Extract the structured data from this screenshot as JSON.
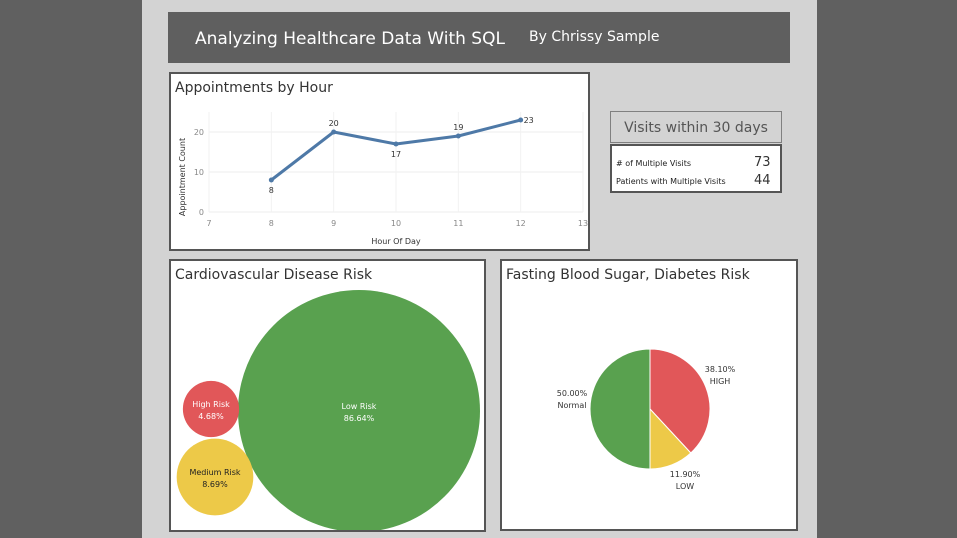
{
  "header": {
    "title": "Analyzing Healthcare Data With SQL",
    "byline": "By Chrissy Sample"
  },
  "kpi": {
    "title": "Visits within 30 days",
    "rows": [
      {
        "label": "# of Multiple Visits",
        "value": "73"
      },
      {
        "label": "Patients with Multiple Visits",
        "value": "44"
      }
    ]
  },
  "colors": {
    "line": "#4e79a7",
    "green": "#59a14f",
    "red": "#e15759",
    "yellow": "#edc948",
    "header_bg": "#5f5f5f",
    "page_bg": "#d3d3d3"
  },
  "chart_data": [
    {
      "id": "appointments",
      "type": "line",
      "title": "Appointments by Hour",
      "xlabel": "Hour Of Day",
      "ylabel": "Appointment Count",
      "x": [
        8,
        9,
        10,
        11,
        12
      ],
      "values": [
        8,
        20,
        17,
        19,
        23
      ],
      "x_ticks": [
        7,
        8,
        9,
        10,
        11,
        12,
        13
      ],
      "y_ticks": [
        0,
        10,
        20
      ],
      "xlim": [
        7,
        13
      ],
      "ylim": [
        0,
        25
      ],
      "grid": true
    },
    {
      "id": "cardio",
      "type": "bubble",
      "title": "Cardiovascular Disease Risk",
      "categories": [
        "Low Risk",
        "High Risk",
        "Medium Risk"
      ],
      "values": [
        86.64,
        4.68,
        8.69
      ],
      "labels": [
        "86.64%",
        "4.68%",
        "8.69%"
      ],
      "colors": [
        "#59a14f",
        "#e15759",
        "#edc948"
      ]
    },
    {
      "id": "diabetes",
      "type": "pie",
      "title": "Fasting Blood Sugar, Diabetes Risk",
      "categories": [
        "HIGH",
        "LOW",
        "Normal"
      ],
      "values": [
        38.1,
        11.9,
        50.0
      ],
      "labels": [
        "38.10%",
        "11.90%",
        "50.00%"
      ],
      "colors": [
        "#e15759",
        "#edc948",
        "#59a14f"
      ]
    }
  ]
}
